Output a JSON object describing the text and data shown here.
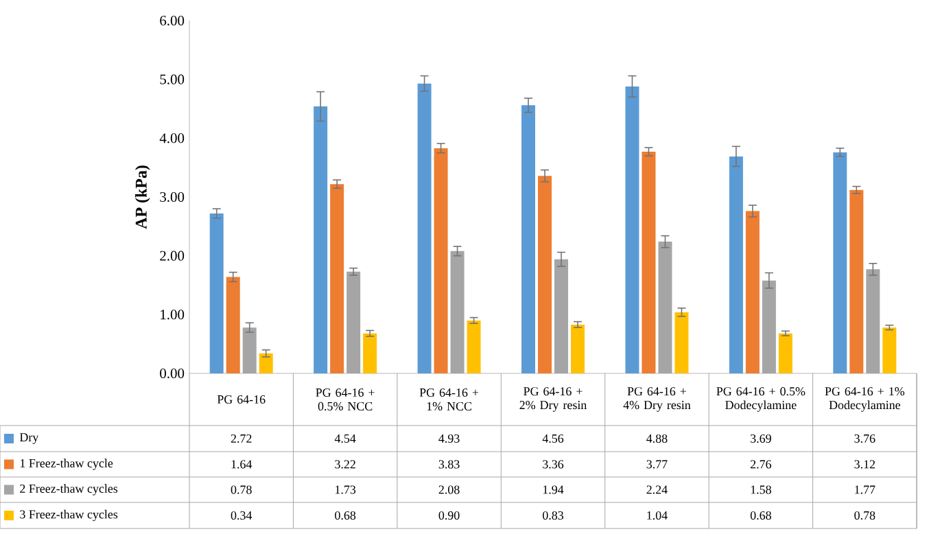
{
  "chart_data": {
    "type": "bar",
    "ylabel": "AP (kPa)",
    "categories": [
      "PG 64-16",
      "PG 64-16 + 0.5% NCC",
      "PG 64-16 + 1% NCC",
      "PG 64-16 + 2% Dry resin",
      "PG 64-16 + 4% Dry resin",
      "PG 64-16 + 0.5% Dodecylamine",
      "PG 64-16 + 1% Dodecylamine"
    ],
    "series": [
      {
        "name": "Dry",
        "color": "#5b9bd5",
        "values": [
          2.72,
          4.54,
          4.93,
          4.56,
          4.88,
          3.69,
          3.76
        ],
        "errors": [
          0.08,
          0.25,
          0.13,
          0.12,
          0.18,
          0.17,
          0.07
        ],
        "value_labels": [
          "2.72",
          "4.54",
          "4.93",
          "4.56",
          "4.88",
          "3.69",
          "3.76"
        ]
      },
      {
        "name": "1 Freez-thaw cycle",
        "color": "#ed7d31",
        "values": [
          1.64,
          3.22,
          3.83,
          3.36,
          3.77,
          2.76,
          3.12
        ],
        "errors": [
          0.08,
          0.07,
          0.08,
          0.1,
          0.07,
          0.1,
          0.06
        ],
        "value_labels": [
          "1.64",
          "3.22",
          "3.83",
          "3.36",
          "3.77",
          "2.76",
          "3.12"
        ]
      },
      {
        "name": "2 Freez-thaw cycles",
        "color": "#a5a5a5",
        "values": [
          0.78,
          1.73,
          2.08,
          1.94,
          2.24,
          1.58,
          1.77
        ],
        "errors": [
          0.08,
          0.06,
          0.08,
          0.12,
          0.1,
          0.13,
          0.1
        ],
        "value_labels": [
          "0.78",
          "1.73",
          "2.08",
          "1.94",
          "2.24",
          "1.58",
          "1.77"
        ]
      },
      {
        "name": "3 Freez-thaw cycles",
        "color": "#ffc000",
        "values": [
          0.34,
          0.68,
          0.9,
          0.83,
          1.04,
          0.68,
          0.78
        ],
        "errors": [
          0.06,
          0.05,
          0.05,
          0.05,
          0.07,
          0.04,
          0.04
        ],
        "value_labels": [
          "0.34",
          "0.68",
          "0.90",
          "0.83",
          "1.04",
          "0.68",
          "0.78"
        ]
      }
    ],
    "ylim": [
      0,
      6
    ],
    "yticks": [
      {
        "value": 0,
        "label": "0.00"
      },
      {
        "value": 1,
        "label": "1.00"
      },
      {
        "value": 2,
        "label": "2.00"
      },
      {
        "value": 3,
        "label": "3.00"
      },
      {
        "value": 4,
        "label": "4.00"
      },
      {
        "value": 5,
        "label": "5.00"
      },
      {
        "value": 6,
        "label": "6.00"
      }
    ],
    "legend": "bottom"
  }
}
